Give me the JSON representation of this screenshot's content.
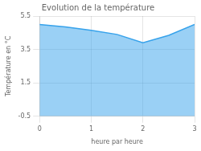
{
  "chart_data": {
    "type": "area",
    "title": "Evolution de la température",
    "xlabel": "heure par heure",
    "ylabel": "Température en °C",
    "x": [
      0,
      0.5,
      1.0,
      1.5,
      2.0,
      2.5,
      3.0
    ],
    "values": [
      5.0,
      4.85,
      4.65,
      4.4,
      3.9,
      4.35,
      5.0
    ],
    "xlim": [
      0,
      3
    ],
    "ylim": [
      -0.5,
      5.5
    ],
    "xticks": [
      0,
      1,
      2,
      3
    ],
    "yticks": [
      -0.5,
      1.5,
      3.5,
      5.5
    ],
    "grid": true
  }
}
